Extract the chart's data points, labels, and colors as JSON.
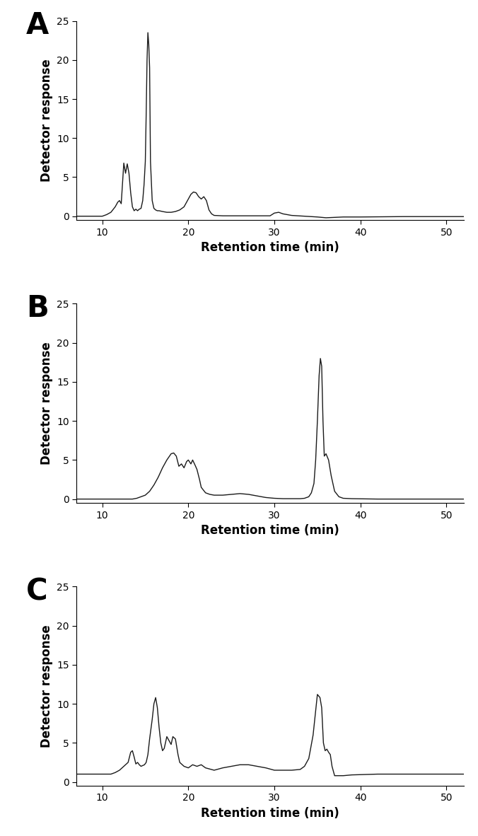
{
  "panels": [
    "A",
    "B",
    "C"
  ],
  "xlabel": "Retention time (min)",
  "ylabel": "Detector response",
  "xlim": [
    7,
    52
  ],
  "ylim": [
    -0.5,
    25
  ],
  "yticks": [
    0,
    5,
    10,
    15,
    20,
    25
  ],
  "xticks": [
    10,
    20,
    30,
    40,
    50
  ],
  "line_color": "#1a1a1a",
  "line_width": 1.0,
  "panel_label_fontsize": 30,
  "axis_label_fontsize": 12,
  "tick_fontsize": 10,
  "panel_A": {
    "x": [
      7,
      9.5,
      10.0,
      10.5,
      11.0,
      11.5,
      11.8,
      12.0,
      12.2,
      12.5,
      12.7,
      12.9,
      13.1,
      13.3,
      13.5,
      13.7,
      13.9,
      14.1,
      14.3,
      14.5,
      14.7,
      14.85,
      15.0,
      15.1,
      15.2,
      15.3,
      15.4,
      15.5,
      15.6,
      15.8,
      16.0,
      16.2,
      16.4,
      16.6,
      17.0,
      17.5,
      18.0,
      18.5,
      19.0,
      19.5,
      20.0,
      20.3,
      20.6,
      20.9,
      21.2,
      21.5,
      21.8,
      22.1,
      22.4,
      22.7,
      23.0,
      24.0,
      25.0,
      27.0,
      29.5,
      30.0,
      30.5,
      31.0,
      32.0,
      35.0,
      36.0,
      37.0,
      38.0,
      40.0,
      45.0,
      50.0,
      52.0
    ],
    "y": [
      0,
      0,
      0,
      0.2,
      0.5,
      1.2,
      1.8,
      2.0,
      1.6,
      6.8,
      5.5,
      6.7,
      5.5,
      3.0,
      1.2,
      0.7,
      0.9,
      0.7,
      0.9,
      1.0,
      2.0,
      4.0,
      7.0,
      13.0,
      20.0,
      23.5,
      22.0,
      19.0,
      7.0,
      2.0,
      1.0,
      0.8,
      0.7,
      0.7,
      0.6,
      0.5,
      0.5,
      0.6,
      0.8,
      1.2,
      2.2,
      2.8,
      3.1,
      3.0,
      2.5,
      2.2,
      2.5,
      2.0,
      0.8,
      0.3,
      0.1,
      0.05,
      0.05,
      0.05,
      0.05,
      0.4,
      0.5,
      0.3,
      0.1,
      -0.1,
      -0.2,
      -0.15,
      -0.1,
      -0.1,
      -0.05,
      -0.05,
      -0.05
    ]
  },
  "panel_B": {
    "x": [
      7,
      10.0,
      12.0,
      13.5,
      14.0,
      14.5,
      15.0,
      15.5,
      16.0,
      16.5,
      17.0,
      17.5,
      18.0,
      18.3,
      18.6,
      18.9,
      19.2,
      19.5,
      19.8,
      20.0,
      20.3,
      20.5,
      20.8,
      21.0,
      21.3,
      21.5,
      22.0,
      22.5,
      23.0,
      24.0,
      25.0,
      26.0,
      27.0,
      28.0,
      29.0,
      30.0,
      31.0,
      32.0,
      33.0,
      33.5,
      34.0,
      34.3,
      34.6,
      34.8,
      35.0,
      35.2,
      35.35,
      35.5,
      35.65,
      35.8,
      36.0,
      36.3,
      36.6,
      37.0,
      37.5,
      38.0,
      39.0,
      42.0,
      52.0
    ],
    "y": [
      0,
      0,
      0,
      0,
      0.1,
      0.3,
      0.5,
      1.0,
      1.8,
      2.8,
      4.0,
      5.0,
      5.8,
      5.9,
      5.5,
      4.2,
      4.5,
      4.0,
      4.8,
      5.0,
      4.5,
      5.0,
      4.3,
      3.8,
      2.5,
      1.5,
      0.8,
      0.6,
      0.5,
      0.5,
      0.6,
      0.7,
      0.6,
      0.4,
      0.2,
      0.1,
      0.05,
      0.05,
      0.05,
      0.1,
      0.3,
      0.8,
      2.0,
      5.0,
      10.0,
      15.8,
      18.0,
      17.0,
      10.0,
      5.5,
      5.8,
      5.0,
      3.0,
      1.0,
      0.3,
      0.1,
      0.05,
      0.0,
      0.0
    ]
  },
  "panel_C": {
    "x": [
      7,
      8.0,
      9.0,
      10.0,
      11.0,
      11.5,
      12.0,
      12.5,
      13.0,
      13.3,
      13.5,
      13.7,
      13.9,
      14.1,
      14.3,
      14.5,
      14.7,
      14.9,
      15.1,
      15.3,
      15.5,
      15.8,
      16.0,
      16.2,
      16.4,
      16.6,
      16.8,
      17.0,
      17.2,
      17.5,
      17.8,
      18.0,
      18.2,
      18.5,
      18.8,
      19.0,
      19.5,
      20.0,
      20.5,
      21.0,
      21.5,
      22.0,
      23.0,
      24.0,
      25.0,
      26.0,
      27.0,
      28.0,
      29.0,
      30.0,
      31.0,
      32.0,
      33.0,
      33.5,
      34.0,
      34.5,
      35.0,
      35.3,
      35.5,
      35.7,
      35.9,
      36.1,
      36.3,
      36.5,
      36.7,
      37.0,
      37.5,
      38.0,
      39.0,
      42.0,
      52.0
    ],
    "y": [
      1.0,
      1.0,
      1.0,
      1.0,
      1.0,
      1.2,
      1.5,
      2.0,
      2.5,
      3.8,
      4.0,
      3.2,
      2.3,
      2.5,
      2.2,
      2.0,
      2.1,
      2.2,
      2.5,
      3.5,
      5.5,
      8.0,
      10.0,
      10.8,
      9.5,
      7.0,
      5.0,
      4.0,
      4.3,
      5.8,
      5.2,
      4.8,
      5.8,
      5.5,
      3.5,
      2.5,
      2.0,
      1.8,
      2.2,
      2.0,
      2.2,
      1.8,
      1.5,
      1.8,
      2.0,
      2.2,
      2.2,
      2.0,
      1.8,
      1.5,
      1.5,
      1.5,
      1.6,
      2.0,
      3.0,
      6.0,
      11.2,
      10.8,
      9.5,
      5.0,
      4.0,
      4.2,
      3.8,
      3.5,
      2.0,
      0.8,
      0.8,
      0.8,
      0.9,
      1.0,
      1.0
    ]
  }
}
